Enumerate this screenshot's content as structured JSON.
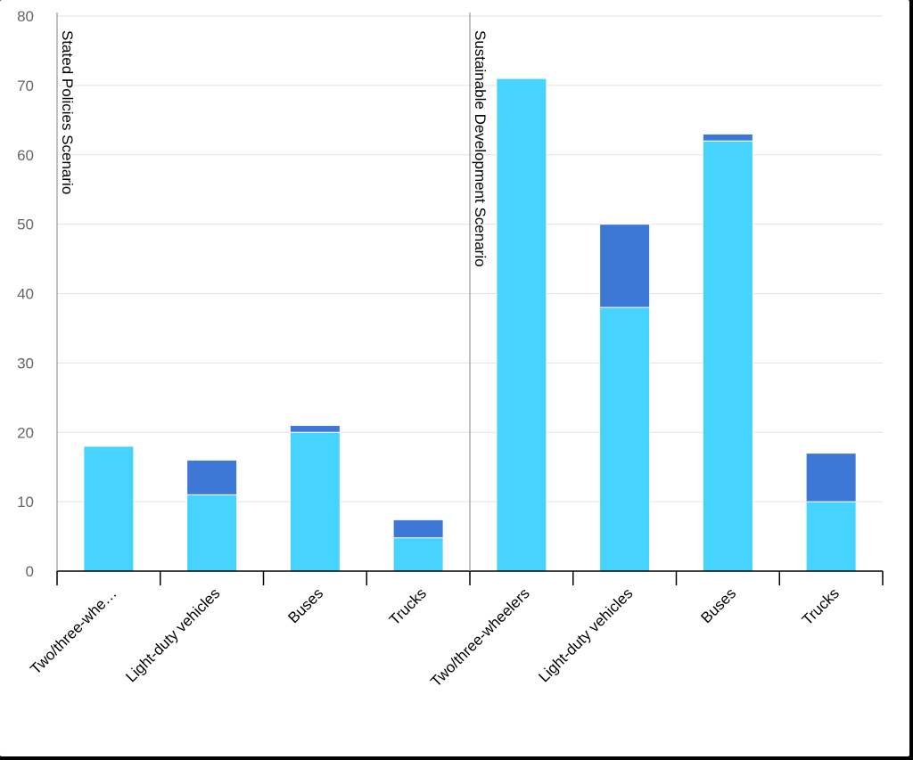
{
  "chart_data": {
    "type": "bar",
    "stacked": true,
    "groups": [
      {
        "label": "Stated Policies Scenario",
        "categories": [
          "Two/three-whe…",
          "Light-duty vehicles",
          "Buses",
          "Trucks"
        ]
      },
      {
        "label": "Sustainable Development Scenario",
        "categories": [
          "Two/three-wheelers",
          "Light-duty vehicles",
          "Buses",
          "Trucks"
        ]
      }
    ],
    "series": [
      {
        "color": "#47d3ff",
        "values": [
          18,
          11,
          20,
          4.8,
          71,
          38,
          62,
          10
        ]
      },
      {
        "color": "#3e78d6",
        "values": [
          0,
          5,
          1,
          2.6,
          0,
          12,
          1,
          7
        ]
      }
    ],
    "ylim": [
      0,
      80
    ],
    "yticks": [
      0,
      10,
      20,
      30,
      40,
      50,
      60,
      70,
      80
    ],
    "grid": true,
    "xlabel": "",
    "ylabel": ""
  }
}
